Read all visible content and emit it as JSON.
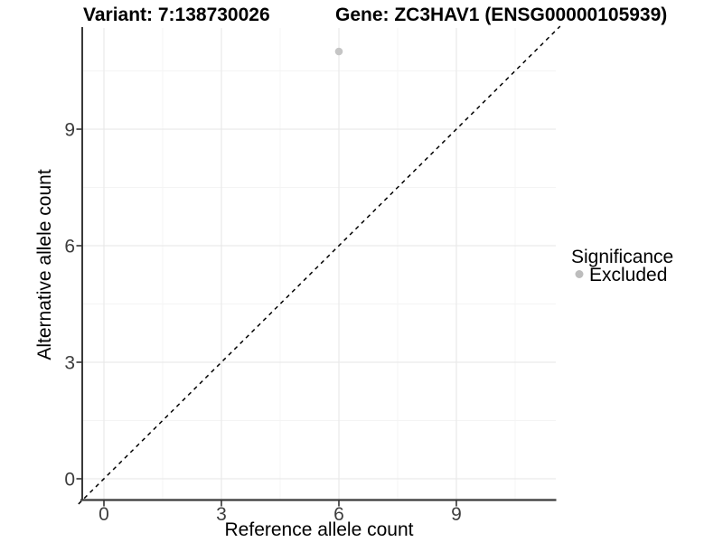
{
  "chart_data": {
    "type": "scatter",
    "title_left": "Variant: 7:138730026",
    "title_right": "Gene: ZC3HAV1 (ENSG00000105939)",
    "xlabel": "Reference allele count",
    "ylabel": "Alternative allele count",
    "x_ticks": [
      0,
      3,
      6,
      9
    ],
    "y_ticks": [
      0,
      3,
      6,
      9
    ],
    "x_tick_labels": [
      "0",
      "3",
      "6",
      "9"
    ],
    "y_tick_labels": [
      "0",
      "3",
      "6",
      "9"
    ],
    "x_minor_gridlines": [
      1.5,
      4.5,
      7.5,
      10.5
    ],
    "y_minor_gridlines": [
      1.5,
      4.5,
      7.5,
      10.5
    ],
    "xlim": [
      -0.55,
      11.55
    ],
    "ylim": [
      -0.55,
      11.55
    ],
    "grid": "major+minor",
    "points": [
      {
        "x": 6,
        "y": 11,
        "significance": "Excluded"
      }
    ],
    "reference_line": {
      "slope": 1,
      "intercept": 0,
      "linetype": "dashed"
    },
    "legend": {
      "title": "Significance",
      "position": "right",
      "items": [
        {
          "label": "Excluded",
          "color": "#c5c5c5"
        }
      ]
    },
    "colors": {
      "point": "#c5c5c5",
      "legend_key": "#bdbdbd",
      "abline": "#000000",
      "axis_line": "#3a3a3a",
      "tick_mark": "#333333",
      "grid_major": "#e9e9e9",
      "grid_minor": "#f4f4f4",
      "tick_label": "#3d3d3d",
      "background": "#ffffff"
    }
  }
}
